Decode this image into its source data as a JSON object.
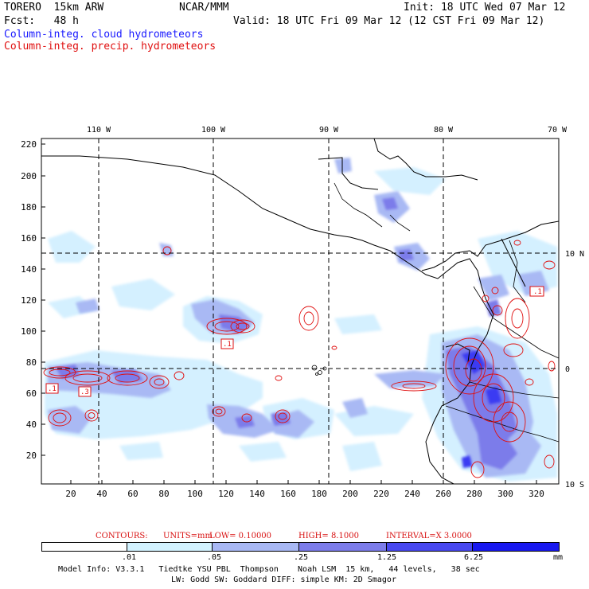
{
  "header": {
    "model": "TORERO  15km ARW",
    "org": "NCAR/MMM",
    "init": "Init: 18 UTC Wed 07 Mar 12",
    "fcst": "Fcst:   48 h",
    "valid": "Valid: 18 UTC Fri 09 Mar 12 (12 CST Fri 09 Mar 12)",
    "line_blue": "Column-integ. cloud hydrometeors",
    "line_red": "Column-integ. precip. hydrometeors"
  },
  "axes": {
    "top_labels": [
      "110 W",
      "100 W",
      "90 W",
      "80 W",
      "70 W"
    ],
    "right_labels": [
      "10 N",
      "0",
      "10 S"
    ],
    "y_ticks": [
      "220",
      "200",
      "180",
      "160",
      "140",
      "120",
      "100",
      "80",
      "60",
      "40",
      "20"
    ],
    "x_ticks": [
      "20",
      "40",
      "60",
      "80",
      "100",
      "120",
      "140",
      "160",
      "180",
      "200",
      "220",
      "240",
      "260",
      "280",
      "300",
      "320"
    ]
  },
  "contours": {
    "prefix": "CONTOURS:",
    "units": "UNITS=mm",
    "low": "LOW= 0.10000",
    "high": "HIGH= 8.1000",
    "interval": "INTERVAL=X 3.0000"
  },
  "colorbar": {
    "labels": [
      ".01",
      ".05",
      ".25",
      "1.25",
      "6.25"
    ],
    "unit": "mm",
    "colors": [
      "#ffffff",
      "#d2f2ff",
      "#a8b8f4",
      "#7c7cea",
      "#4848f0",
      "#1818f0"
    ]
  },
  "footer": {
    "line1": "Model Info: V3.3.1   Tiedtke YSU PBL  Thompson    Noah LSM  15 km,   44 levels,   38 sec",
    "line2": "LW: Godd SW: Goddard DIFF: simple KM: 2D Smagor"
  },
  "markers": {
    "low_labels": [
      ".1",
      ".1",
      ".3",
      ".1"
    ]
  }
}
